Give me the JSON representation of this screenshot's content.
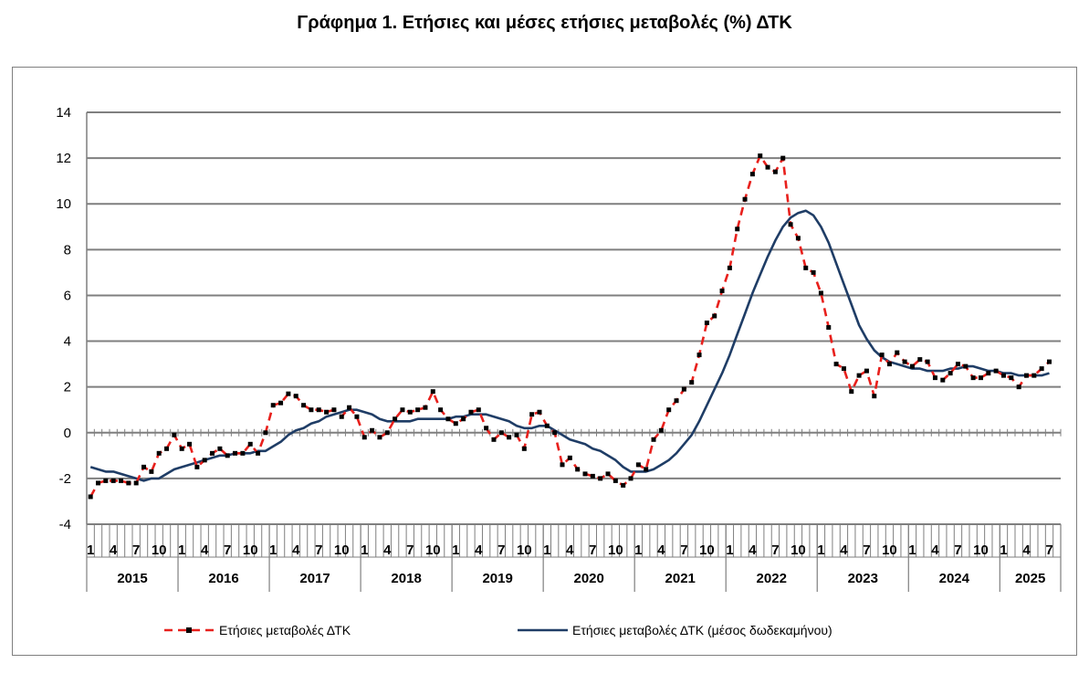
{
  "title": "Γράφημα 1. Ετήσιες και μέσες ετήσιες μεταβολές (%) ΔΤΚ",
  "colors": {
    "annual": "#e8201c",
    "marker": "#000000",
    "average": "#1f3d66",
    "grid": "#7f7f7f"
  },
  "chart_data": {
    "type": "line",
    "title": "Γράφημα 1. Ετήσιες και μέσες ετήσιες μεταβολές (%) ΔΤΚ",
    "ylim": [
      -4,
      14
    ],
    "yticks": [
      -4,
      -2,
      0,
      2,
      4,
      6,
      8,
      10,
      12,
      14
    ],
    "grid": true,
    "legend_position": "bottom",
    "x_start": "2015-01",
    "x_end": "2025-08",
    "month_tick_labels": [
      "1",
      "4",
      "7",
      "10"
    ],
    "years": [
      "2015",
      "2016",
      "2017",
      "2018",
      "2019",
      "2020",
      "2021",
      "2022",
      "2023",
      "2024",
      "2025"
    ],
    "series": [
      {
        "name": "Ετήσιες μεταβολές ΔΤΚ",
        "style": "dashed-with-markers",
        "values": [
          -2.8,
          -2.2,
          -2.1,
          -2.1,
          -2.1,
          -2.2,
          -2.2,
          -1.5,
          -1.7,
          -0.9,
          -0.7,
          -0.1,
          -0.7,
          -0.5,
          -1.5,
          -1.2,
          -0.9,
          -0.7,
          -1.0,
          -0.9,
          -0.9,
          -0.5,
          -0.9,
          0.0,
          1.2,
          1.3,
          1.7,
          1.6,
          1.2,
          1.0,
          1.0,
          0.9,
          1.0,
          0.7,
          1.1,
          0.7,
          -0.2,
          0.1,
          -0.2,
          0.0,
          0.6,
          1.0,
          0.9,
          1.0,
          1.1,
          1.8,
          1.0,
          0.6,
          0.4,
          0.6,
          0.9,
          1.0,
          0.2,
          -0.3,
          0.0,
          -0.2,
          -0.1,
          -0.7,
          0.8,
          0.9,
          0.3,
          0.0,
          -1.4,
          -1.1,
          -1.6,
          -1.8,
          -1.9,
          -2.0,
          -1.8,
          -2.1,
          -2.3,
          -2.0,
          -1.4,
          -1.6,
          -0.3,
          0.1,
          1.0,
          1.4,
          1.9,
          2.2,
          3.4,
          4.8,
          5.1,
          6.2,
          7.2,
          8.9,
          10.2,
          11.3,
          12.1,
          11.6,
          11.4,
          12.0,
          9.1,
          8.5,
          7.2,
          7.0,
          6.1,
          4.6,
          3.0,
          2.8,
          1.8,
          2.5,
          2.7,
          1.6,
          3.4,
          3.0,
          3.5,
          3.1,
          2.9,
          3.2,
          3.1,
          2.4,
          2.3,
          2.6,
          3.0,
          2.9,
          2.4,
          2.4,
          2.6,
          2.7,
          2.5,
          2.4,
          2.0,
          2.5,
          2.5,
          2.8,
          3.1
        ]
      },
      {
        "name": "Ετήσιες μεταβολές ΔΤΚ (μέσος δωδεκαμήνου)",
        "style": "solid",
        "values": [
          -1.5,
          -1.6,
          -1.7,
          -1.7,
          -1.8,
          -1.9,
          -2.0,
          -2.1,
          -2.0,
          -2.0,
          -1.8,
          -1.6,
          -1.5,
          -1.4,
          -1.3,
          -1.2,
          -1.1,
          -1.0,
          -1.0,
          -0.9,
          -0.9,
          -0.9,
          -0.8,
          -0.8,
          -0.6,
          -0.4,
          -0.1,
          0.1,
          0.2,
          0.4,
          0.5,
          0.7,
          0.8,
          0.9,
          1.0,
          1.0,
          0.9,
          0.8,
          0.6,
          0.5,
          0.5,
          0.5,
          0.5,
          0.6,
          0.6,
          0.6,
          0.6,
          0.6,
          0.7,
          0.7,
          0.8,
          0.8,
          0.8,
          0.7,
          0.6,
          0.5,
          0.3,
          0.2,
          0.2,
          0.3,
          0.3,
          0.1,
          -0.1,
          -0.3,
          -0.4,
          -0.5,
          -0.7,
          -0.8,
          -1.0,
          -1.2,
          -1.5,
          -1.7,
          -1.7,
          -1.7,
          -1.6,
          -1.4,
          -1.2,
          -0.9,
          -0.5,
          -0.1,
          0.5,
          1.2,
          1.9,
          2.6,
          3.4,
          4.3,
          5.2,
          6.1,
          6.9,
          7.7,
          8.4,
          9.0,
          9.4,
          9.6,
          9.7,
          9.5,
          9.0,
          8.3,
          7.4,
          6.5,
          5.6,
          4.7,
          4.1,
          3.6,
          3.3,
          3.1,
          3.0,
          2.9,
          2.8,
          2.8,
          2.7,
          2.7,
          2.7,
          2.8,
          2.8,
          2.9,
          2.9,
          2.8,
          2.7,
          2.7,
          2.6,
          2.6,
          2.5,
          2.5,
          2.5,
          2.5,
          2.6
        ]
      }
    ]
  }
}
